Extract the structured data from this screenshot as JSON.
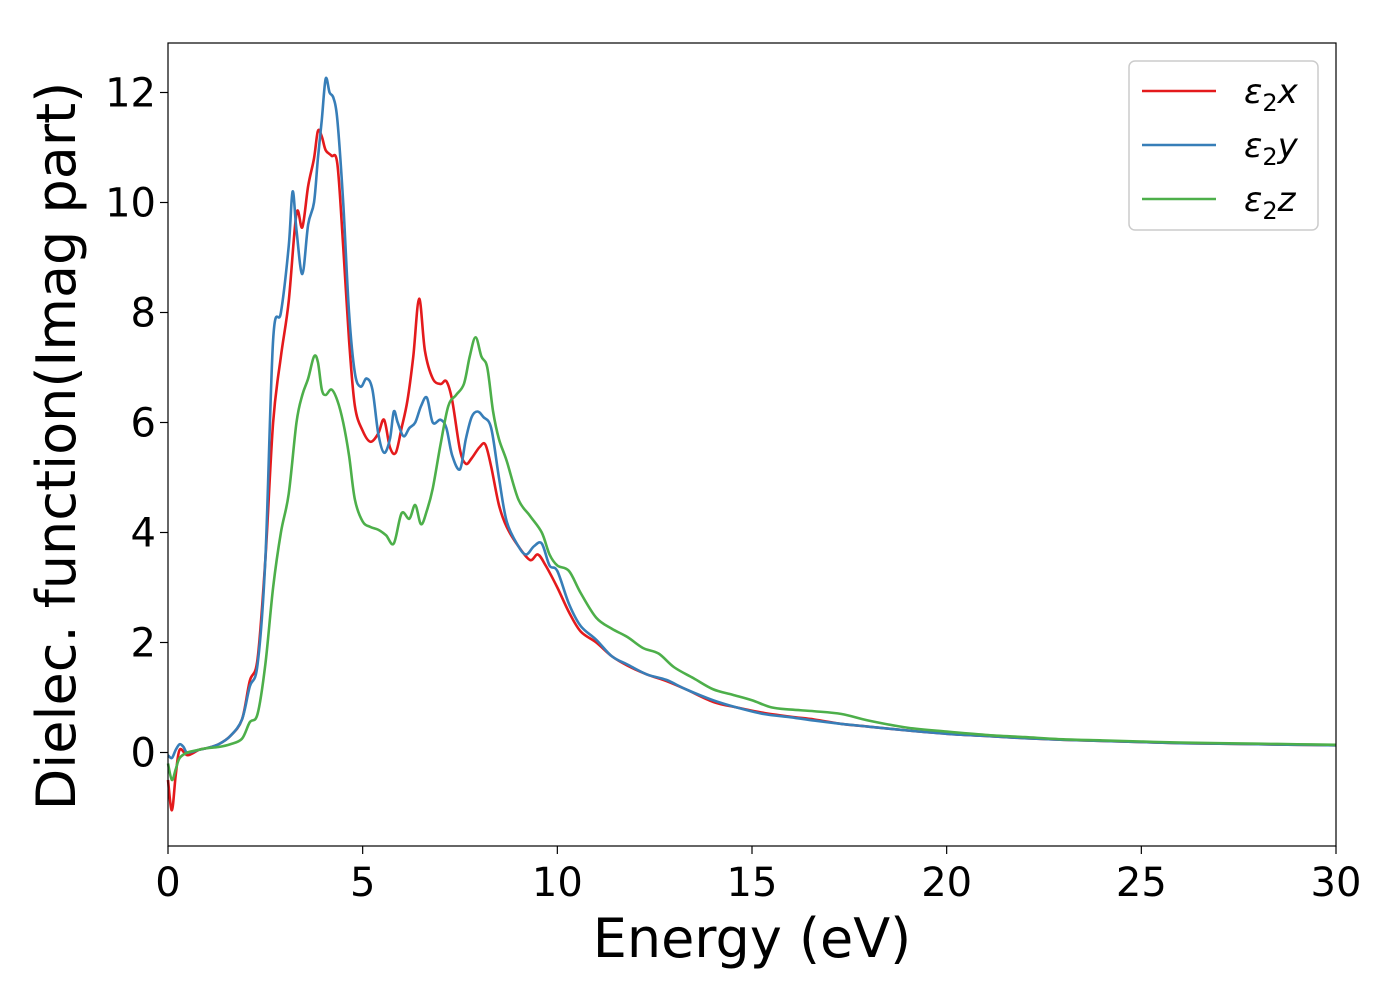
{
  "chart_data": {
    "type": "line",
    "title": "",
    "xlabel": "Energy (eV)",
    "ylabel": "Dielec. function(Imag part)",
    "xlim": [
      0,
      30
    ],
    "ylim": [
      -1.7,
      12.9
    ],
    "xticks": [
      0,
      5,
      10,
      15,
      20,
      25,
      30
    ],
    "yticks": [
      0,
      2,
      4,
      6,
      8,
      10,
      12
    ],
    "grid": false,
    "legend_position": "top-right",
    "series": [
      {
        "name": "ε₂x",
        "legend": {
          "base": "ε",
          "sub": "2",
          "tail": "x"
        },
        "color": "#e41a1c",
        "x": [
          0,
          0.1,
          0.2,
          0.3,
          0.5,
          0.8,
          1.0,
          1.3,
          1.6,
          1.9,
          2.1,
          2.3,
          2.5,
          2.7,
          2.9,
          3.1,
          3.3,
          3.45,
          3.6,
          3.75,
          3.85,
          3.95,
          4.05,
          4.2,
          4.35,
          4.5,
          4.65,
          4.8,
          5.0,
          5.2,
          5.4,
          5.55,
          5.7,
          5.85,
          6.0,
          6.15,
          6.3,
          6.45,
          6.6,
          6.8,
          7.0,
          7.15,
          7.3,
          7.5,
          7.65,
          7.8,
          8.0,
          8.15,
          8.3,
          8.5,
          8.7,
          9.0,
          9.3,
          9.5,
          9.7,
          10.0,
          10.3,
          10.6,
          11.0,
          11.4,
          11.8,
          12.3,
          12.8,
          13.3,
          14.0,
          14.6,
          15.3,
          16.0,
          16.6,
          17.3,
          18.0,
          19.0,
          20.0,
          21.0,
          22.0,
          23.0,
          24.0,
          25.0,
          26.0,
          27.0,
          28.0,
          29.0,
          30.0
        ],
        "y": [
          -0.5,
          -1.05,
          -0.4,
          0.05,
          -0.05,
          0.05,
          0.08,
          0.15,
          0.3,
          0.6,
          1.3,
          1.7,
          3.5,
          6.0,
          7.2,
          8.2,
          9.8,
          9.55,
          10.3,
          10.8,
          11.3,
          11.2,
          10.95,
          10.85,
          10.7,
          9.2,
          7.5,
          6.3,
          5.85,
          5.65,
          5.8,
          6.05,
          5.55,
          5.45,
          5.9,
          6.4,
          7.2,
          8.25,
          7.3,
          6.8,
          6.7,
          6.75,
          6.4,
          5.5,
          5.25,
          5.35,
          5.55,
          5.6,
          5.2,
          4.5,
          4.1,
          3.75,
          3.5,
          3.6,
          3.4,
          3.0,
          2.55,
          2.2,
          2.0,
          1.75,
          1.58,
          1.42,
          1.3,
          1.15,
          0.92,
          0.82,
          0.72,
          0.65,
          0.6,
          0.52,
          0.47,
          0.4,
          0.34,
          0.3,
          0.26,
          0.23,
          0.21,
          0.19,
          0.17,
          0.16,
          0.15,
          0.14,
          0.13
        ]
      },
      {
        "name": "ε₂y",
        "legend": {
          "base": "ε",
          "sub": "2",
          "tail": "y"
        },
        "color": "#377eb8",
        "x": [
          0,
          0.1,
          0.2,
          0.3,
          0.4,
          0.5,
          0.8,
          1.0,
          1.3,
          1.6,
          1.9,
          2.1,
          2.3,
          2.5,
          2.7,
          2.9,
          3.1,
          3.2,
          3.3,
          3.45,
          3.6,
          3.75,
          3.85,
          3.95,
          4.05,
          4.15,
          4.25,
          4.35,
          4.5,
          4.65,
          4.8,
          4.95,
          5.1,
          5.25,
          5.4,
          5.55,
          5.7,
          5.8,
          5.9,
          6.05,
          6.2,
          6.35,
          6.5,
          6.65,
          6.8,
          7.0,
          7.15,
          7.3,
          7.5,
          7.65,
          7.8,
          7.95,
          8.1,
          8.3,
          8.5,
          8.7,
          9.0,
          9.2,
          9.4,
          9.6,
          9.8,
          10.0,
          10.3,
          10.6,
          11.0,
          11.4,
          11.8,
          12.3,
          12.8,
          13.3,
          14.0,
          14.6,
          15.3,
          16.0,
          16.6,
          17.3,
          18.0,
          19.0,
          20.0,
          21.0,
          22.0,
          23.0,
          24.0,
          25.0,
          26.0,
          27.0,
          28.0,
          29.0,
          30.0
        ],
        "y": [
          -0.05,
          -0.1,
          0.05,
          0.15,
          0.1,
          0.0,
          0.05,
          0.08,
          0.15,
          0.3,
          0.6,
          1.2,
          1.6,
          3.5,
          7.5,
          8.0,
          9.2,
          10.2,
          9.5,
          8.7,
          9.6,
          10.0,
          10.8,
          11.5,
          12.25,
          12.0,
          11.9,
          11.5,
          10.0,
          8.0,
          6.9,
          6.65,
          6.8,
          6.6,
          5.8,
          5.45,
          5.7,
          6.2,
          6.0,
          5.75,
          5.9,
          6.0,
          6.3,
          6.45,
          6.0,
          6.05,
          5.9,
          5.4,
          5.15,
          5.7,
          6.1,
          6.2,
          6.1,
          5.9,
          5.0,
          4.2,
          3.75,
          3.6,
          3.75,
          3.8,
          3.4,
          3.3,
          2.7,
          2.3,
          2.05,
          1.75,
          1.6,
          1.42,
          1.32,
          1.15,
          0.95,
          0.82,
          0.7,
          0.64,
          0.58,
          0.52,
          0.47,
          0.4,
          0.34,
          0.3,
          0.26,
          0.23,
          0.21,
          0.19,
          0.17,
          0.16,
          0.15,
          0.14,
          0.13
        ]
      },
      {
        "name": "ε₂z",
        "legend": {
          "base": "ε",
          "sub": "2",
          "tail": "z"
        },
        "color": "#4daf4a",
        "x": [
          0,
          0.1,
          0.2,
          0.3,
          0.5,
          0.8,
          1.0,
          1.3,
          1.6,
          1.9,
          2.1,
          2.3,
          2.5,
          2.7,
          2.9,
          3.1,
          3.3,
          3.45,
          3.6,
          3.75,
          3.85,
          3.95,
          4.05,
          4.2,
          4.35,
          4.5,
          4.65,
          4.8,
          5.0,
          5.2,
          5.4,
          5.6,
          5.8,
          6.0,
          6.2,
          6.35,
          6.5,
          6.65,
          6.8,
          7.0,
          7.2,
          7.4,
          7.6,
          7.75,
          7.9,
          8.05,
          8.2,
          8.35,
          8.5,
          8.7,
          9.0,
          9.3,
          9.6,
          9.8,
          10.0,
          10.3,
          10.6,
          11.0,
          11.4,
          11.8,
          12.2,
          12.6,
          13.0,
          13.5,
          14.0,
          14.5,
          15.0,
          15.5,
          16.0,
          16.6,
          17.3,
          18.0,
          19.0,
          20.0,
          21.0,
          22.0,
          23.0,
          24.0,
          25.0,
          26.0,
          27.0,
          28.0,
          29.0,
          30.0
        ],
        "y": [
          -0.2,
          -0.5,
          -0.3,
          -0.1,
          0.0,
          0.05,
          0.08,
          0.1,
          0.15,
          0.25,
          0.55,
          0.7,
          1.6,
          3.0,
          4.0,
          4.7,
          6.0,
          6.5,
          6.8,
          7.2,
          7.1,
          6.6,
          6.5,
          6.6,
          6.4,
          6.0,
          5.4,
          4.6,
          4.2,
          4.1,
          4.05,
          3.95,
          3.8,
          4.35,
          4.25,
          4.5,
          4.15,
          4.4,
          4.8,
          5.6,
          6.3,
          6.5,
          6.7,
          7.2,
          7.55,
          7.2,
          7.0,
          6.2,
          5.7,
          5.3,
          4.6,
          4.3,
          4.0,
          3.6,
          3.4,
          3.3,
          2.9,
          2.45,
          2.25,
          2.1,
          1.9,
          1.8,
          1.55,
          1.35,
          1.15,
          1.05,
          0.95,
          0.82,
          0.78,
          0.75,
          0.7,
          0.58,
          0.45,
          0.38,
          0.32,
          0.28,
          0.24,
          0.22,
          0.2,
          0.18,
          0.17,
          0.16,
          0.15,
          0.14
        ]
      }
    ]
  }
}
